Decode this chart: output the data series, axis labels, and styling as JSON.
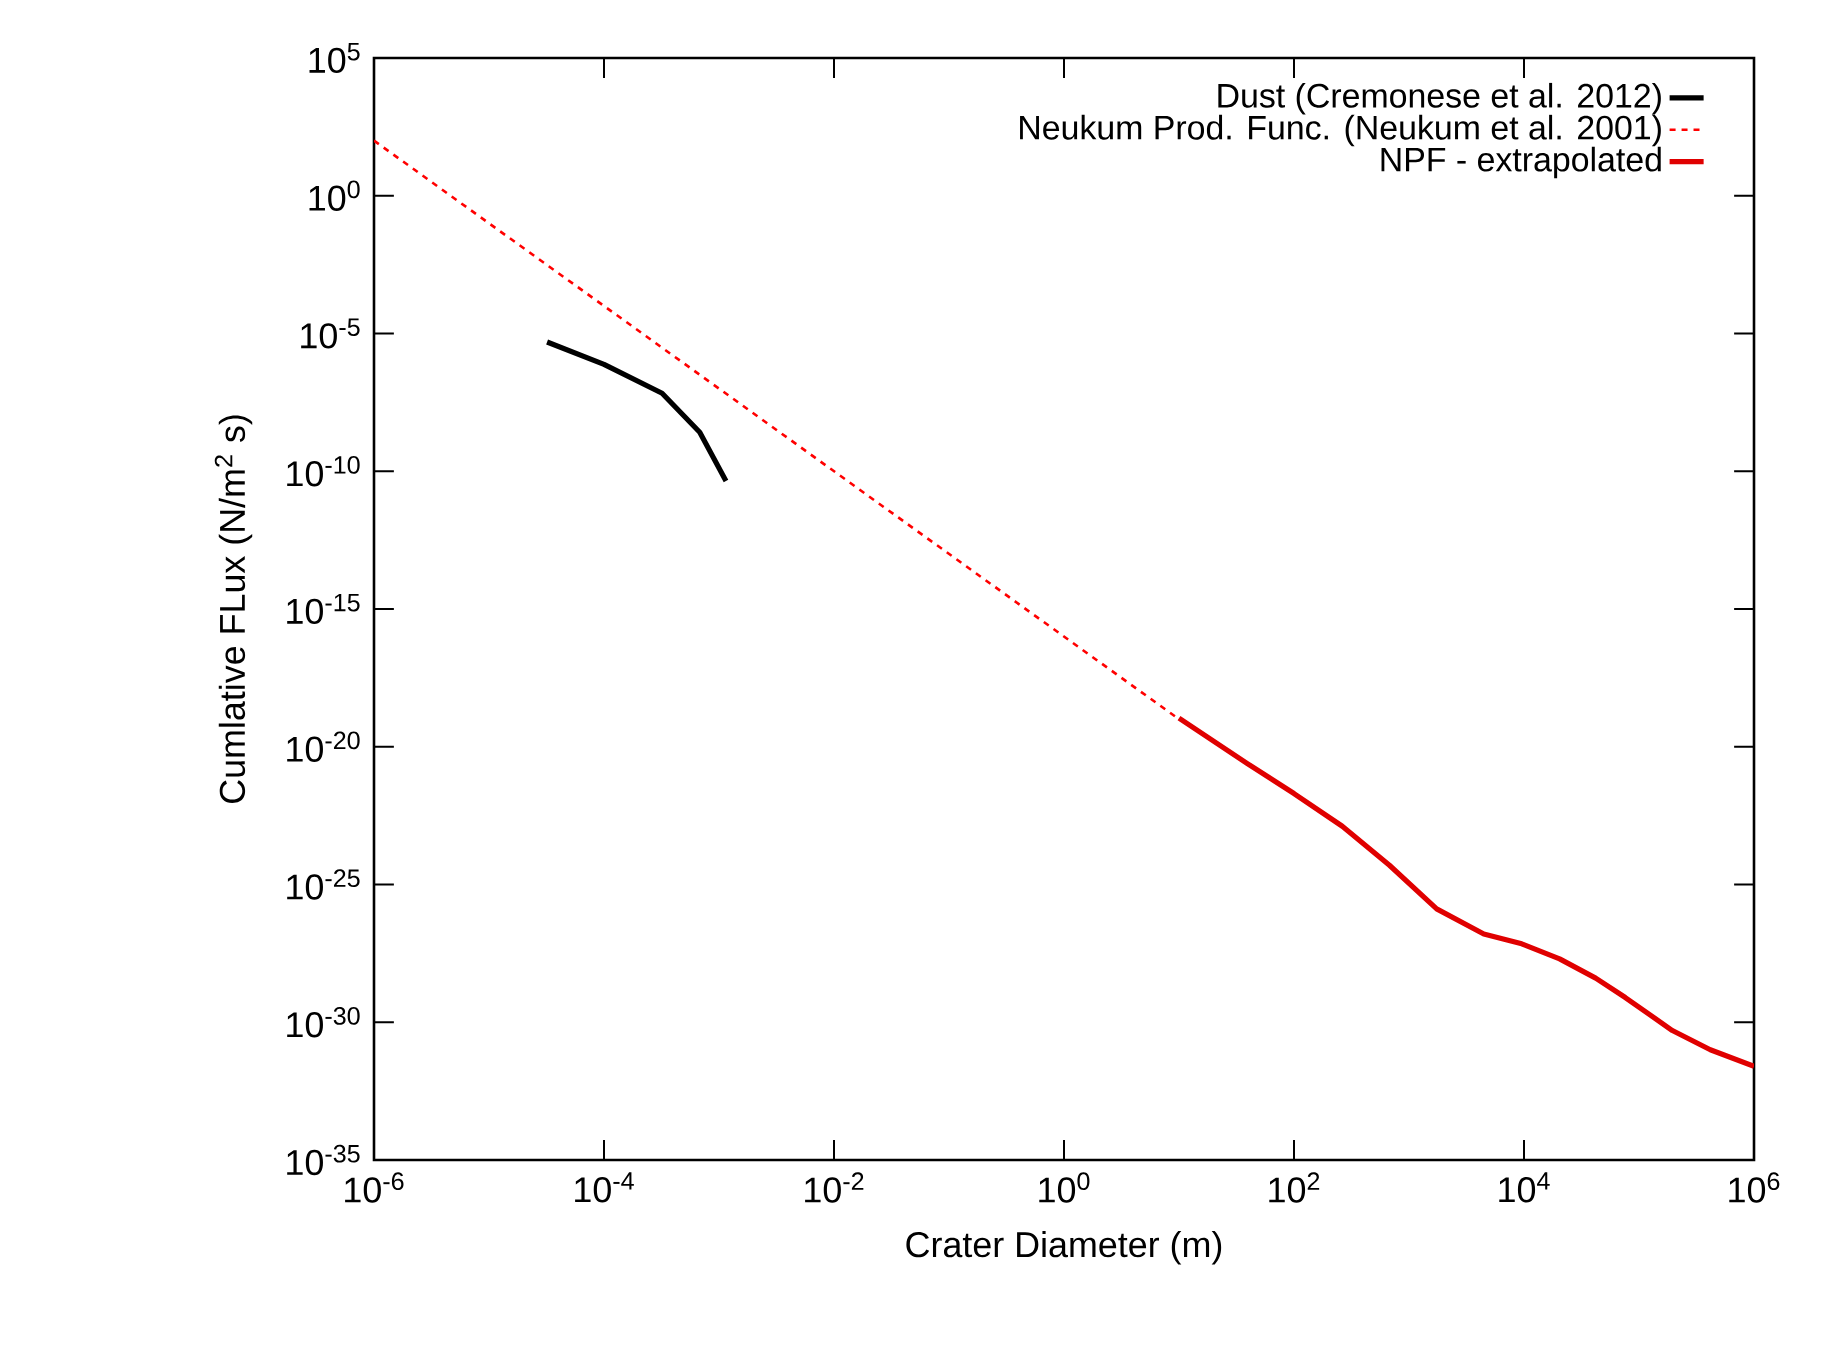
{
  "chart_data": {
    "type": "line",
    "xlabel": "Crater Diameter (m)",
    "ylabel": "Cumlative FLux (N/m$^{2}$ s)",
    "log": "xy",
    "legend": "top right",
    "xlim": [
      1e-06,
      1000000.0
    ],
    "ylim": [
      1e-35,
      100000.0
    ],
    "xticks": [
      {
        "value": 1e-06,
        "label": "10$^{-6}$"
      },
      {
        "value": 0.0001,
        "label": "10$^{-4}$"
      },
      {
        "value": 0.01,
        "label": "10$^{-2}$"
      },
      {
        "value": 1,
        "label": "10$^{0}$"
      },
      {
        "value": 100.0,
        "label": "10$^{2}$"
      },
      {
        "value": 10000.0,
        "label": "10$^{4}$"
      },
      {
        "value": 1000000.0,
        "label": "10$^{6}$"
      }
    ],
    "yticks": [
      {
        "value": 1e-35,
        "label": "10$^{-35}$"
      },
      {
        "value": 1e-30,
        "label": "10$^{-30}$"
      },
      {
        "value": 1e-25,
        "label": "10$^{-25}$"
      },
      {
        "value": 1e-20,
        "label": "10$^{-20}$"
      },
      {
        "value": 1e-15,
        "label": "10$^{-15}$"
      },
      {
        "value": 1e-10,
        "label": "10$^{-10}$"
      },
      {
        "value": 1e-05,
        "label": "10$^{-5}$"
      },
      {
        "value": 1,
        "label": "10$^{0}$"
      },
      {
        "value": 100000.0,
        "label": "10$^{5}$"
      }
    ],
    "series": [
      {
        "name": "Dust (Cremonese et al. 2012)",
        "color": "#000000",
        "line_style": "solid",
        "x": [
          3.2e-05,
          0.0001,
          0.00032,
          0.00068,
          0.00115
        ],
        "values": [
          4.9e-06,
          7.6e-07,
          6.8e-08,
          2.6e-09,
          4.4e-11
        ]
      },
      {
        "name": "Neukum Prod. Func. (Neukum et al. 2001)",
        "color": "#ff0000",
        "line_style": "dashed",
        "x": [
          1e-06,
          10
        ],
        "values": [
          100.0,
          1e-19
        ]
      },
      {
        "name": "NPF - extrapolated",
        "color": "#e00000",
        "line_style": "solid",
        "x": [
          10,
          39,
          100,
          263,
          676,
          1740,
          4470,
          9550,
          20400,
          42000,
          76000,
          195000,
          417000,
          1000000.0
        ],
        "values": [
          1.1e-19,
          2.5e-21,
          2e-22,
          1.3e-23,
          5e-25,
          1.3e-26,
          1.6e-27,
          7e-28,
          2e-28,
          4e-29,
          7.9e-30,
          5e-31,
          1e-31,
          2.5e-32
        ]
      }
    ]
  }
}
